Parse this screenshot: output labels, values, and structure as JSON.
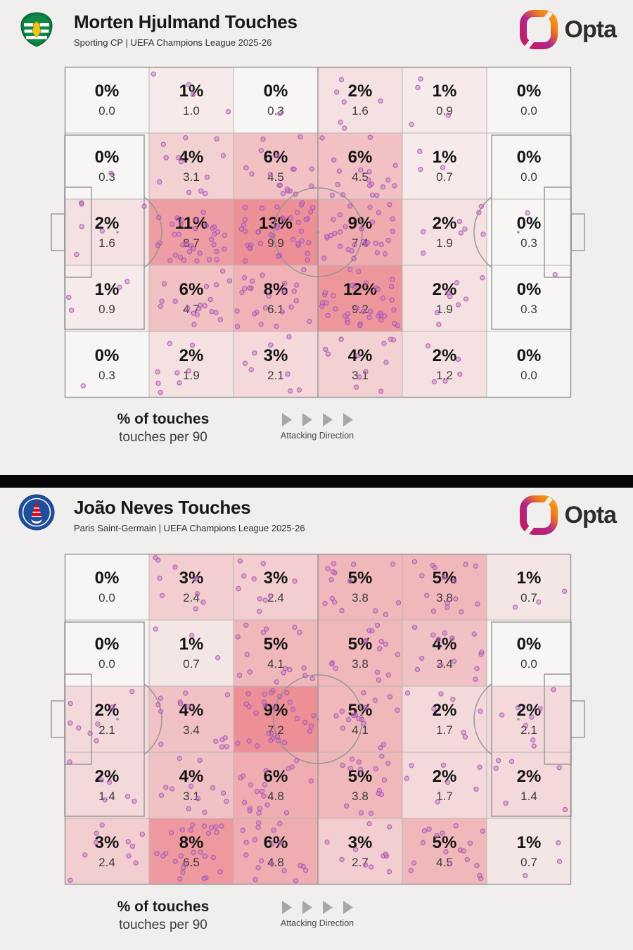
{
  "page": {
    "background": "#f0efee"
  },
  "branding": {
    "logo_text": "Opta"
  },
  "legend": {
    "pct_label": "% of touches",
    "per90_label": "touches per 90",
    "direction_label": "Attacking Direction"
  },
  "colors": {
    "background": "#f0efee",
    "divider": "#060606",
    "heat_low": "#f7f6f5",
    "heat_high": "#ec8f96",
    "dot_fill": "#c77bc9",
    "dot_stroke": "#a350aa",
    "grid_line": "#b9b6b5",
    "pitch_line": "#949494",
    "arrow_gray": "#a7a7a7",
    "opta_magenta": "#c0208d",
    "opta_orange": "#f6921e",
    "sporting_green": "#0b7a40",
    "psg_blue": "#1e4e9c",
    "psg_red": "#e30613"
  },
  "chart_data": [
    {
      "type": "heatmap",
      "title": "Morten Hjulmand Touches",
      "subtitle": "Sporting CP | UEFA Champions League 2025-26",
      "team": "Sporting CP",
      "badge": "sporting-cp-crest",
      "grid": {
        "cols": 6,
        "rows": 5
      },
      "max_pct": 13,
      "attacking_direction": "left-to-right",
      "value_units": [
        "% of touches",
        "touches per 90"
      ],
      "cells": [
        [
          [
            "0%",
            "0.0"
          ],
          [
            "1%",
            "1.0"
          ],
          [
            "0%",
            "0.3"
          ],
          [
            "2%",
            "1.6"
          ],
          [
            "1%",
            "0.9"
          ],
          [
            "0%",
            "0.0"
          ]
        ],
        [
          [
            "0%",
            "0.3"
          ],
          [
            "4%",
            "3.1"
          ],
          [
            "6%",
            "4.5"
          ],
          [
            "6%",
            "4.5"
          ],
          [
            "1%",
            "0.7"
          ],
          [
            "0%",
            "0.0"
          ]
        ],
        [
          [
            "2%",
            "1.6"
          ],
          [
            "11%",
            "8.7"
          ],
          [
            "13%",
            "9.9"
          ],
          [
            "9%",
            "7.4"
          ],
          [
            "2%",
            "1.9"
          ],
          [
            "0%",
            "0.3"
          ]
        ],
        [
          [
            "1%",
            "0.9"
          ],
          [
            "6%",
            "4.7"
          ],
          [
            "8%",
            "6.1"
          ],
          [
            "12%",
            "9.2"
          ],
          [
            "2%",
            "1.9"
          ],
          [
            "0%",
            "0.3"
          ]
        ],
        [
          [
            "0%",
            "0.3"
          ],
          [
            "2%",
            "1.9"
          ],
          [
            "3%",
            "2.1"
          ],
          [
            "4%",
            "3.1"
          ],
          [
            "2%",
            "1.2"
          ],
          [
            "0%",
            "0.0"
          ]
        ]
      ]
    },
    {
      "type": "heatmap",
      "title": "João Neves Touches",
      "subtitle": "Paris Saint-Germain | UEFA Champions League 2025-26",
      "team": "Paris Saint-Germain",
      "badge": "psg-crest",
      "grid": {
        "cols": 6,
        "rows": 5
      },
      "max_pct": 9,
      "attacking_direction": "left-to-right",
      "value_units": [
        "% of touches",
        "touches per 90"
      ],
      "cells": [
        [
          [
            "0%",
            "0.0"
          ],
          [
            "3%",
            "2.4"
          ],
          [
            "3%",
            "2.4"
          ],
          [
            "5%",
            "3.8"
          ],
          [
            "5%",
            "3.8"
          ],
          [
            "1%",
            "0.7"
          ]
        ],
        [
          [
            "0%",
            "0.0"
          ],
          [
            "1%",
            "0.7"
          ],
          [
            "5%",
            "4.1"
          ],
          [
            "5%",
            "3.8"
          ],
          [
            "4%",
            "3.4"
          ],
          [
            "0%",
            "0.0"
          ]
        ],
        [
          [
            "2%",
            "2.1"
          ],
          [
            "4%",
            "3.4"
          ],
          [
            "9%",
            "7.2"
          ],
          [
            "5%",
            "4.1"
          ],
          [
            "2%",
            "1.7"
          ],
          [
            "2%",
            "2.1"
          ]
        ],
        [
          [
            "2%",
            "1.4"
          ],
          [
            "4%",
            "3.1"
          ],
          [
            "6%",
            "4.8"
          ],
          [
            "5%",
            "3.8"
          ],
          [
            "2%",
            "1.7"
          ],
          [
            "2%",
            "1.4"
          ]
        ],
        [
          [
            "3%",
            "2.4"
          ],
          [
            "8%",
            "6.5"
          ],
          [
            "6%",
            "4.8"
          ],
          [
            "3%",
            "2.7"
          ],
          [
            "5%",
            "4.5"
          ],
          [
            "1%",
            "0.7"
          ]
        ]
      ]
    }
  ]
}
